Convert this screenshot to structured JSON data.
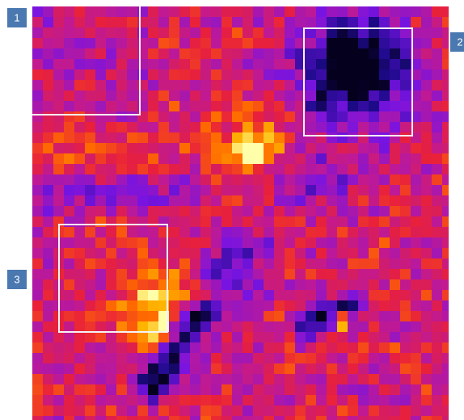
{
  "markers": [
    {
      "label": "1"
    },
    {
      "label": "2"
    },
    {
      "label": "3"
    }
  ]
}
